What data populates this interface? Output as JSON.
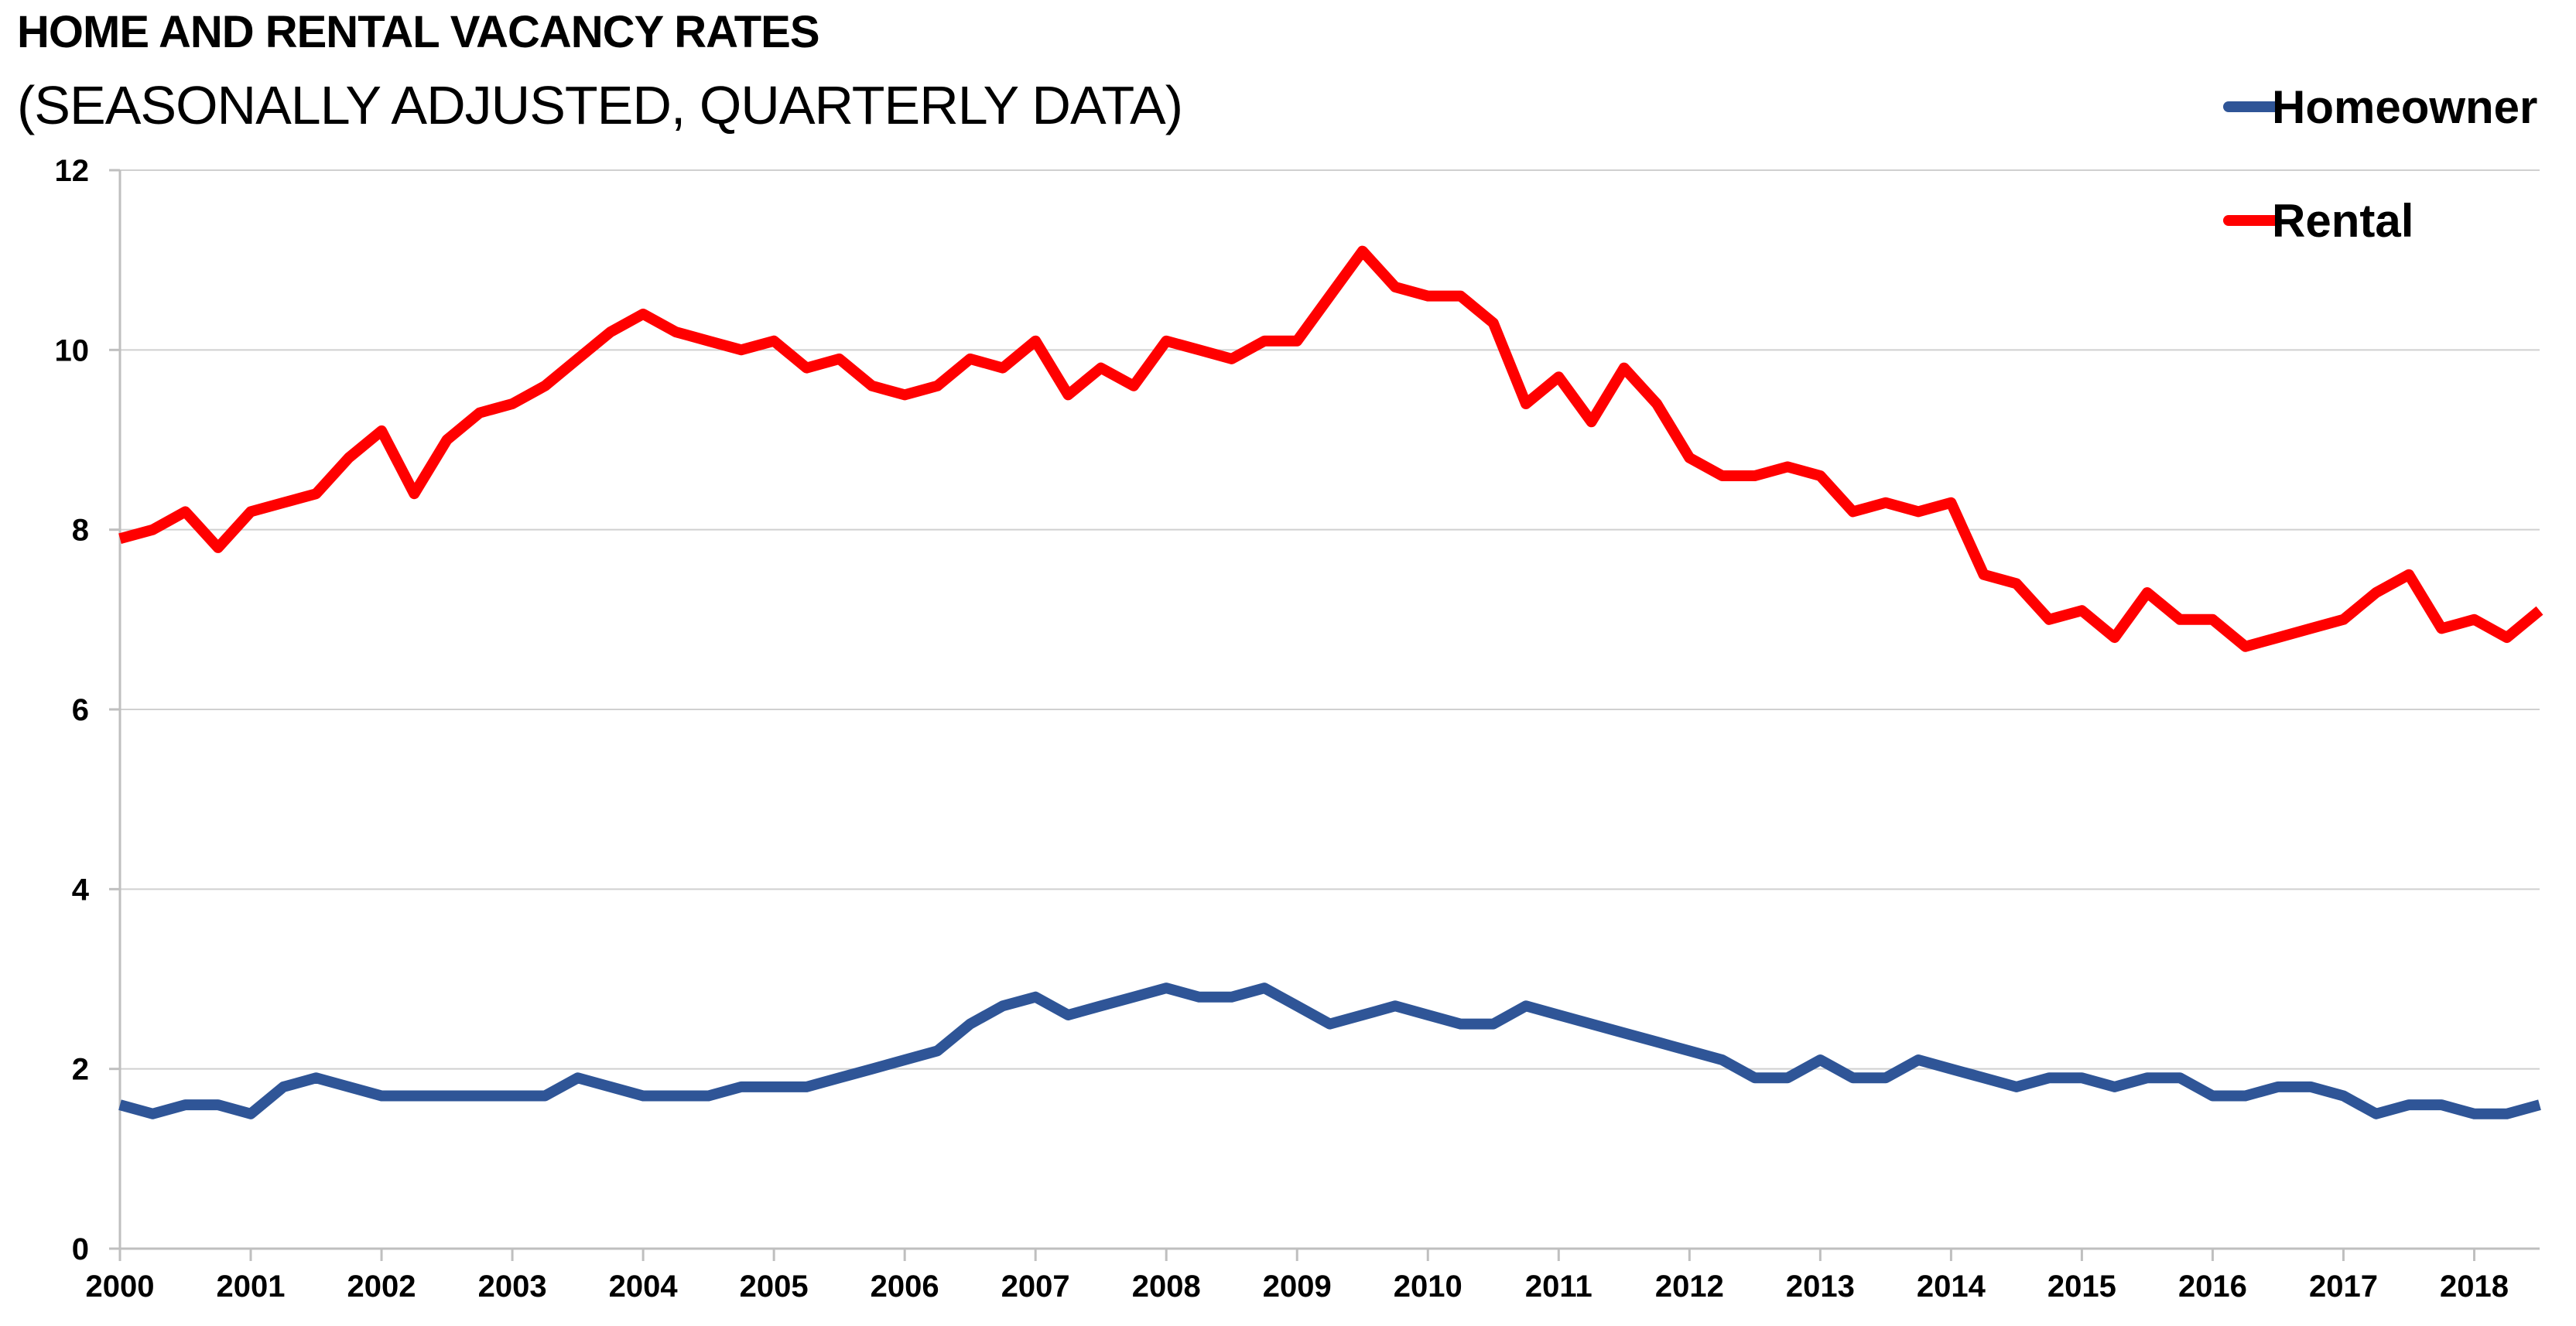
{
  "title": "HOME AND RENTAL VACANCY RATES",
  "subtitle": "(SEASONALLY ADJUSTED, QUARTERLY DATA)",
  "chart_data": {
    "type": "line",
    "title": "HOME AND RENTAL VACANCY RATES",
    "subtitle": "(SEASONALLY ADJUSTED, QUARTERLY DATA)",
    "xlabel": "",
    "ylabel": "",
    "ylim": [
      0,
      12
    ],
    "yticks": [
      0,
      2,
      4,
      6,
      8,
      10,
      12
    ],
    "xlim": [
      2000,
      2018.5
    ],
    "xticks": [
      "2000",
      "2001",
      "2002",
      "2003",
      "2004",
      "2005",
      "2006",
      "2007",
      "2008",
      "2009",
      "2010",
      "2011",
      "2012",
      "2013",
      "2014",
      "2015",
      "2016",
      "2017",
      "2018"
    ],
    "x_start": 2000,
    "x_step": 0.25,
    "grid": "horizontal",
    "legend_position": "top-right",
    "series": [
      {
        "name": "Homeowner",
        "color": "#2F5597",
        "values": [
          1.6,
          1.5,
          1.6,
          1.6,
          1.5,
          1.8,
          1.9,
          1.8,
          1.7,
          1.7,
          1.7,
          1.7,
          1.7,
          1.7,
          1.9,
          1.8,
          1.7,
          1.7,
          1.7,
          1.8,
          1.8,
          1.8,
          1.9,
          2.0,
          2.1,
          2.2,
          2.5,
          2.7,
          2.8,
          2.6,
          2.7,
          2.8,
          2.9,
          2.8,
          2.8,
          2.9,
          2.7,
          2.5,
          2.6,
          2.7,
          2.6,
          2.5,
          2.5,
          2.7,
          2.6,
          2.5,
          2.4,
          2.3,
          2.2,
          2.1,
          1.9,
          1.9,
          2.1,
          1.9,
          1.9,
          2.1,
          2.0,
          1.9,
          1.8,
          1.9,
          1.9,
          1.8,
          1.9,
          1.9,
          1.7,
          1.7,
          1.8,
          1.8,
          1.7,
          1.5,
          1.6,
          1.6,
          1.5,
          1.5,
          1.6
        ]
      },
      {
        "name": "Rental",
        "color": "#FF0000",
        "values": [
          7.9,
          8.0,
          8.2,
          7.8,
          8.2,
          8.3,
          8.4,
          8.8,
          9.1,
          8.4,
          9.0,
          9.3,
          9.4,
          9.6,
          9.9,
          10.2,
          10.4,
          10.2,
          10.1,
          10.0,
          10.1,
          9.8,
          9.9,
          9.6,
          9.5,
          9.6,
          9.9,
          9.8,
          10.1,
          9.5,
          9.8,
          9.6,
          10.1,
          10.0,
          9.9,
          10.1,
          10.1,
          10.6,
          11.1,
          10.7,
          10.6,
          10.6,
          10.3,
          9.4,
          9.7,
          9.2,
          9.8,
          9.4,
          8.8,
          8.6,
          8.6,
          8.7,
          8.6,
          8.2,
          8.3,
          8.2,
          8.3,
          7.5,
          7.4,
          7.0,
          7.1,
          6.8,
          7.3,
          7.0,
          7.0,
          6.7,
          6.8,
          6.9,
          7.0,
          7.3,
          7.5,
          6.9,
          7.0,
          6.8,
          7.1
        ]
      }
    ]
  }
}
